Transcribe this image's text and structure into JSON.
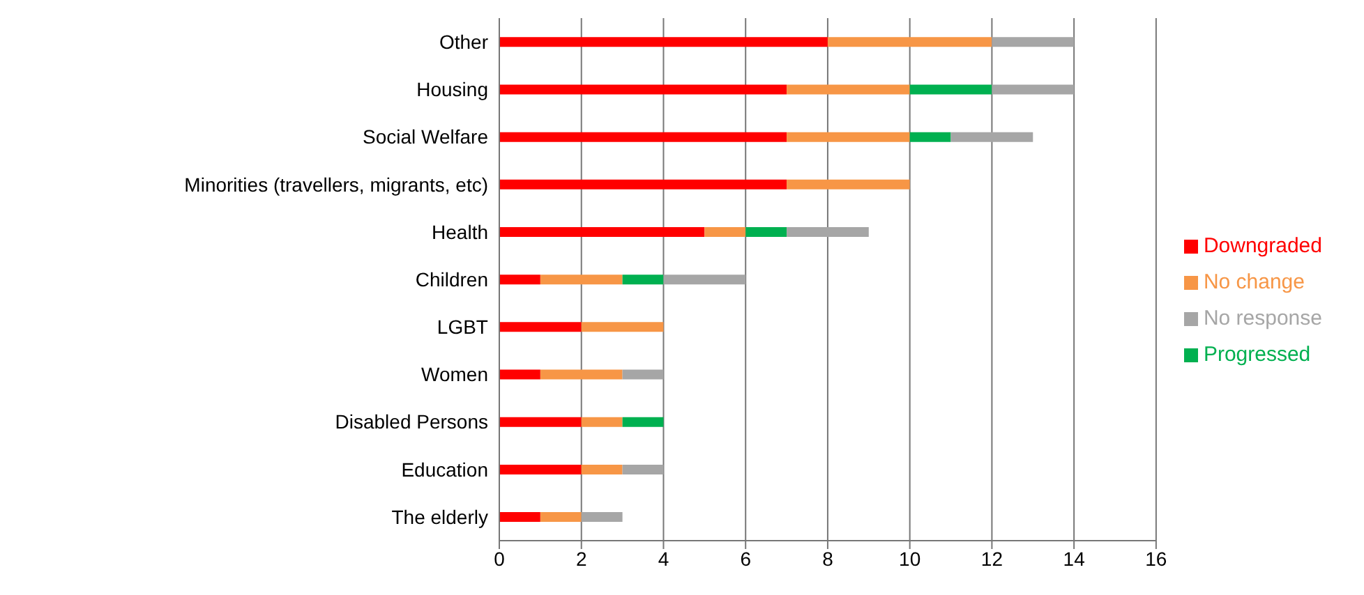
{
  "chart_data": {
    "type": "bar",
    "orientation": "horizontal",
    "stacked": true,
    "categories": [
      "Other",
      "Housing",
      "Social Welfare",
      "Minorities (travellers, migrants, etc)",
      "Health",
      "Children",
      "LGBT",
      "Women",
      "Disabled Persons",
      "Education",
      "The elderly"
    ],
    "series": [
      {
        "name": "Downgraded",
        "color": "#ff0000",
        "values": [
          8,
          7,
          7,
          7,
          5,
          1,
          2,
          1,
          2,
          2,
          1
        ]
      },
      {
        "name": "No change",
        "color": "#f79646",
        "values": [
          4,
          3,
          3,
          3,
          1,
          2,
          2,
          2,
          1,
          1,
          1
        ]
      },
      {
        "name": "Progressed",
        "color": "#00b050",
        "values": [
          0,
          2,
          1,
          0,
          1,
          1,
          0,
          0,
          1,
          0,
          0
        ]
      },
      {
        "name": "No response",
        "color": "#a6a6a6",
        "values": [
          2,
          2,
          2,
          0,
          2,
          2,
          0,
          1,
          0,
          1,
          1
        ]
      }
    ],
    "xlim": [
      0,
      16
    ],
    "xticks": [
      0,
      2,
      4,
      6,
      8,
      10,
      12,
      14,
      16
    ],
    "grid": "x",
    "legend": "right"
  }
}
